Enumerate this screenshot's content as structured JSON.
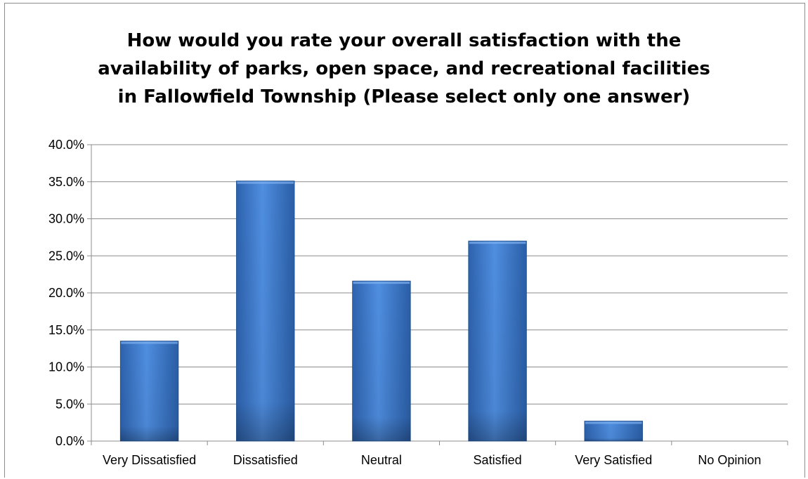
{
  "chart_data": {
    "type": "bar",
    "title_lines": [
      "How would you rate your overall satisfaction with the",
      "availability of parks, open space, and recreational facilities",
      "in Fallowfield Township (Please select only one answer)"
    ],
    "categories": [
      "Very Dissatisfied",
      "Dissatisfied",
      "Neutral",
      "Satisfied",
      "Very Satisfied",
      "No Opinion"
    ],
    "values": [
      13.5,
      35.1,
      21.6,
      27.0,
      2.7,
      0.0
    ],
    "y_ticks": [
      "0.0%",
      "5.0%",
      "10.0%",
      "15.0%",
      "20.0%",
      "25.0%",
      "30.0%",
      "35.0%",
      "40.0%"
    ],
    "ylim": [
      0,
      40
    ],
    "grid": true,
    "legend": "none",
    "colors": {
      "bar": "#4a86d6",
      "bar_dark": "#1f4f8f",
      "bar_light": "#7fb0ef",
      "grid": "#8c8c8c"
    }
  }
}
